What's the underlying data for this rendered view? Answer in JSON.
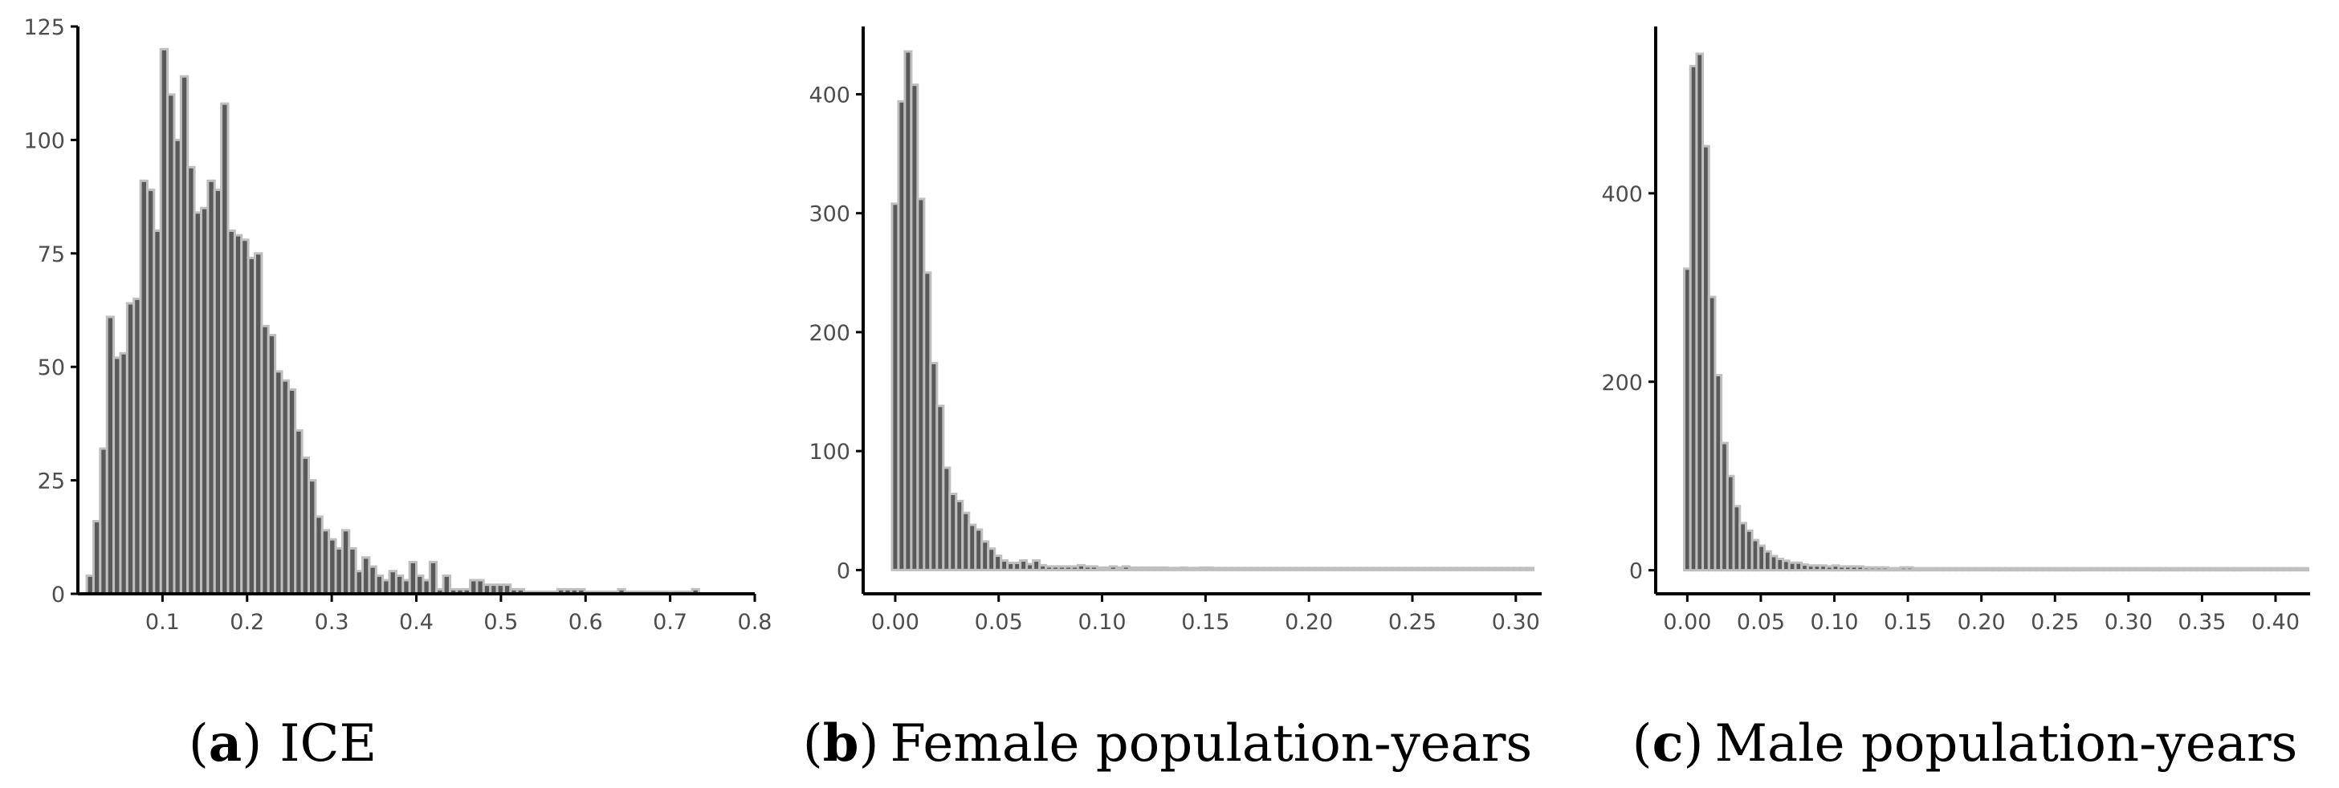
{
  "colors": {
    "bar_fill": "#595959",
    "bar_stroke": "#bfbfbf",
    "axis": "#000000",
    "tick_text": "#4d4d4d"
  },
  "chart_data": [
    {
      "type": "bar",
      "caption": {
        "open": "(",
        "letter": "a",
        "close": ")",
        "text": "ICE"
      },
      "xlabel": "",
      "ylabel": "",
      "xlim": [
        0.0,
        0.8
      ],
      "ylim": [
        0,
        125
      ],
      "xticks": [
        0.1,
        0.2,
        0.3,
        0.4,
        0.5,
        0.6,
        0.7,
        0.8
      ],
      "xtick_labels": [
        "0.1",
        "0.2",
        "0.3",
        "0.4",
        "0.5",
        "0.6",
        "0.7",
        "0.8"
      ],
      "yticks": [
        0,
        25,
        50,
        75,
        100,
        125
      ],
      "ytick_labels": [
        "0",
        "25",
        "50",
        "75",
        "100",
        "125"
      ],
      "bin_start": 0.0105,
      "bin_width": 0.00795,
      "values": [
        4,
        16,
        32,
        61,
        52,
        53,
        64,
        65,
        91,
        89,
        80,
        120,
        110,
        100,
        114,
        94,
        84,
        85,
        91,
        89,
        108,
        80,
        79,
        78,
        74,
        75,
        59,
        57,
        49,
        47,
        45,
        36,
        30,
        25,
        17,
        14,
        12,
        10,
        14,
        10,
        5,
        8,
        6,
        4,
        3,
        5,
        4,
        3,
        7,
        4,
        3,
        7,
        1,
        4,
        1,
        1,
        1,
        3,
        3,
        2,
        2,
        2,
        2,
        1,
        1,
        0,
        0,
        0,
        0,
        0,
        1,
        1,
        1,
        1,
        0,
        0,
        0,
        0,
        0,
        1,
        0,
        0,
        0,
        0,
        0,
        0,
        0,
        0,
        0,
        0,
        1
      ],
      "grid": false
    },
    {
      "type": "bar",
      "caption": {
        "open": "(",
        "letter": "b",
        "close": ")",
        "text": "Female population-years"
      },
      "xlabel": "",
      "ylabel": "",
      "xlim": [
        -0.0155,
        0.3125
      ],
      "ylim": [
        -20,
        457
      ],
      "xticks": [
        0.0,
        0.05,
        0.1,
        0.15,
        0.2,
        0.25,
        0.3
      ],
      "xtick_labels": [
        "0.00",
        "0.05",
        "0.10",
        "0.15",
        "0.20",
        "0.25",
        "0.30"
      ],
      "yticks": [
        0,
        100,
        200,
        300,
        400
      ],
      "ytick_labels": [
        "0",
        "100",
        "200",
        "300",
        "400"
      ],
      "bin_start": -0.00155,
      "bin_width": 0.0031,
      "values": [
        308,
        394,
        436,
        408,
        312,
        250,
        174,
        138,
        86,
        64,
        58,
        48,
        38,
        34,
        24,
        18,
        12,
        8,
        6,
        6,
        8,
        5,
        8,
        4,
        3,
        3,
        3,
        3,
        3,
        4,
        3,
        3,
        2,
        2,
        3,
        2,
        3,
        2,
        2,
        2,
        2,
        2,
        2,
        1,
        1,
        2,
        1,
        1,
        2,
        2,
        1,
        1,
        1,
        1,
        1,
        1,
        1,
        1,
        1,
        1,
        1,
        1,
        1,
        1,
        1,
        1,
        1,
        1,
        1,
        1,
        1,
        1,
        1,
        1,
        1,
        1,
        1,
        1,
        1,
        1,
        1,
        1,
        1,
        1,
        1,
        1,
        1,
        1,
        1,
        1,
        1,
        1,
        1,
        1,
        1,
        1,
        1,
        1,
        1,
        1
      ],
      "grid": false
    },
    {
      "type": "bar",
      "caption": {
        "open": "(",
        "letter": "c",
        "close": ")",
        "text": "Male population-years"
      },
      "xlabel": "",
      "ylabel": "",
      "xlim": [
        -0.0215,
        0.4235
      ],
      "ylim": [
        -25,
        577
      ],
      "xticks": [
        0.0,
        0.05,
        0.1,
        0.15,
        0.2,
        0.25,
        0.3,
        0.35,
        0.4
      ],
      "xtick_labels": [
        "0.00",
        "0.05",
        "0.10",
        "0.15",
        "0.20",
        "0.25",
        "0.30",
        "0.35",
        "0.40"
      ],
      "yticks": [
        0,
        200,
        400
      ],
      "ytick_labels": [
        "0",
        "200",
        "400"
      ],
      "bin_start": -0.0021,
      "bin_width": 0.0042,
      "values": [
        320,
        535,
        548,
        450,
        290,
        207,
        135,
        100,
        68,
        50,
        42,
        32,
        26,
        20,
        15,
        12,
        10,
        8,
        8,
        6,
        5,
        5,
        5,
        4,
        5,
        4,
        4,
        4,
        4,
        3,
        3,
        3,
        3,
        2,
        2,
        3,
        3,
        2,
        2,
        2,
        2,
        2,
        2,
        2,
        2,
        2,
        1,
        1,
        1,
        1,
        1,
        1,
        1,
        1,
        1,
        1,
        1,
        1,
        1,
        1,
        1,
        1,
        1,
        1,
        1,
        1,
        1,
        1,
        1,
        1,
        1,
        1,
        1,
        1,
        1,
        1,
        1,
        1,
        1,
        1,
        1,
        1,
        1,
        1,
        1,
        1,
        1,
        1,
        1,
        1,
        1,
        1,
        1,
        1,
        1,
        1,
        1,
        1,
        1,
        1,
        1
      ],
      "grid": false
    }
  ]
}
